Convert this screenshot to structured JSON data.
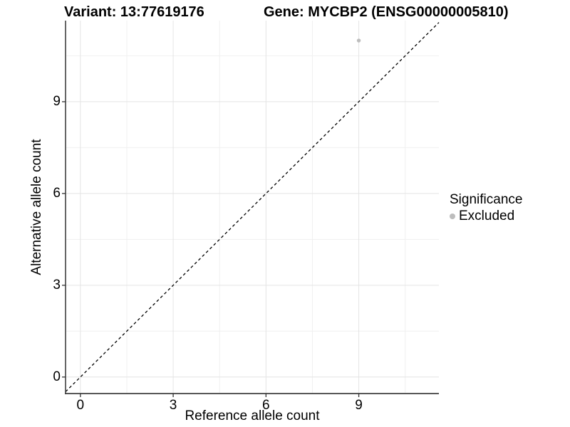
{
  "titles": {
    "variant": "Variant: 13:77619176",
    "gene": "Gene: MYCBP2 (ENSG00000005810)"
  },
  "legend": {
    "title": "Significance",
    "items": [
      {
        "label": "Excluded",
        "color": "#bdbdbd"
      }
    ]
  },
  "chart_data": {
    "type": "scatter",
    "title": "Variant: 13:77619176  |  Gene: MYCBP2 (ENSG00000005810)",
    "xlabel": "Reference allele count",
    "ylabel": "Alternative allele count",
    "points": [
      {
        "x": 9,
        "y": 11,
        "series": "Excluded"
      }
    ],
    "series": [
      {
        "name": "Excluded",
        "color": "#bdbdbd"
      }
    ],
    "xlim": [
      -0.48,
      11.59
    ],
    "ylim": [
      -0.54,
      11.65
    ],
    "xticks": [
      0,
      3,
      6,
      9
    ],
    "yticks": [
      0,
      3,
      6,
      9
    ],
    "xtick_labels": [
      "0",
      "3",
      "6",
      "9"
    ],
    "ytick_labels": [
      "0",
      "3",
      "6",
      "9"
    ],
    "minor_ticks": [
      1.5,
      4.5,
      7.5,
      10.5
    ],
    "grid": "major+minor",
    "legend_position": "right",
    "reference_line": {
      "type": "identity",
      "slope": 1,
      "intercept": 0,
      "style": "dashed",
      "color": "#000000"
    },
    "colors": {
      "major_grid": "#e4e4e4",
      "minor_grid": "#f0f0f0",
      "axis_line": "#404040",
      "tick_mark": "#333333",
      "point": "#bdbdbd",
      "background": "#ffffff"
    }
  }
}
